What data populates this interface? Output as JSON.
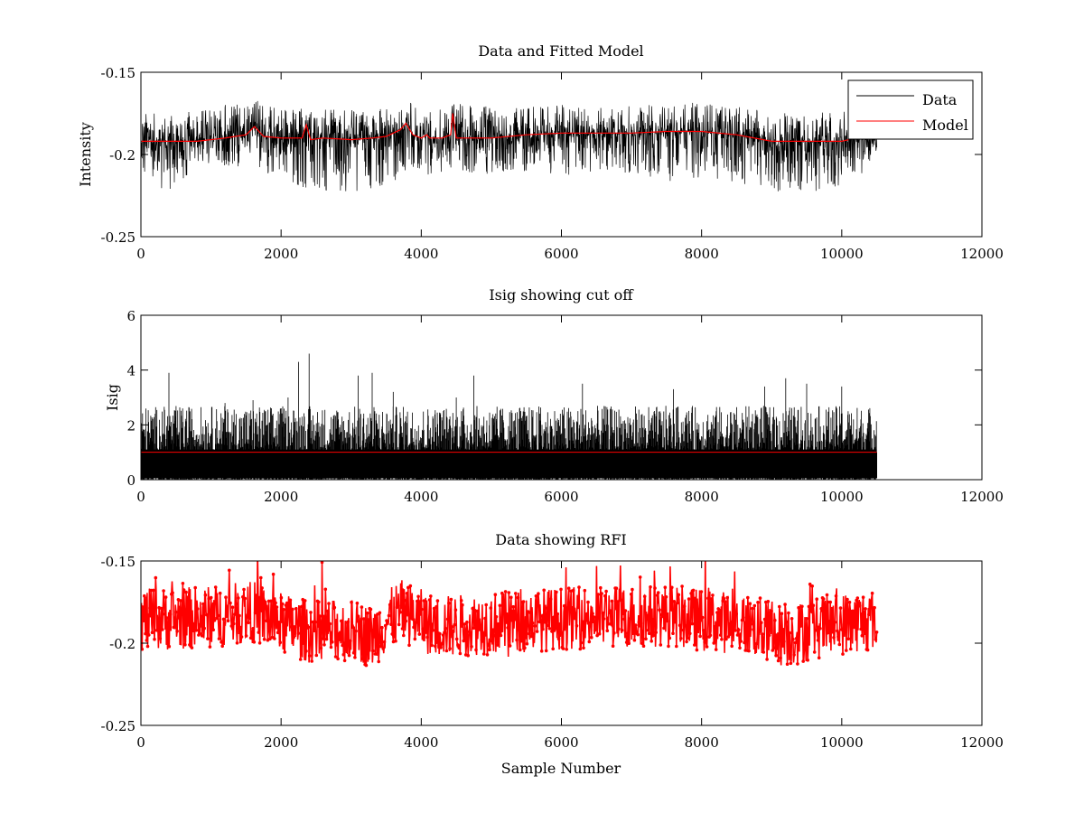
{
  "figure": {
    "background": "#ffffff",
    "x_max_sample": 10500,
    "data_color": "#000000",
    "model_color": "#ff0000"
  },
  "chart_data": [
    {
      "type": "line",
      "title": "Data and Fitted Model",
      "xlabel": "",
      "ylabel": "Intensity",
      "xlim": [
        0,
        12000
      ],
      "ylim": [
        -0.25,
        -0.15
      ],
      "y_reversed": true,
      "xticks": [
        0,
        2000,
        4000,
        6000,
        8000,
        10000,
        12000
      ],
      "xtick_labels": [
        "0",
        "2000",
        "4000",
        "6000",
        "8000",
        "10000",
        "12000"
      ],
      "yticks": [
        -0.15,
        -0.2,
        -0.25
      ],
      "ytick_labels": [
        "-0.15",
        "-0.2",
        "-0.25"
      ],
      "legend": {
        "location": "top-right",
        "entries": [
          "Data",
          "Model"
        ]
      },
      "series": [
        {
          "name": "Data",
          "color": "#000000",
          "description": "noisy intensity around model, approx -0.17 to -0.23",
          "envelope_x": [
            0,
            400,
            800,
            1200,
            1600,
            2000,
            2400,
            2800,
            3200,
            3600,
            3800,
            4000,
            4400,
            4800,
            5200,
            5600,
            6000,
            6400,
            6800,
            7200,
            7600,
            8000,
            8400,
            8800,
            9200,
            9600,
            10000,
            10500
          ],
          "envelope_min": [
            -0.174,
            -0.176,
            -0.173,
            -0.168,
            -0.166,
            -0.17,
            -0.171,
            -0.173,
            -0.172,
            -0.17,
            -0.166,
            -0.175,
            -0.168,
            -0.17,
            -0.172,
            -0.171,
            -0.169,
            -0.172,
            -0.171,
            -0.17,
            -0.169,
            -0.168,
            -0.17,
            -0.171,
            -0.175,
            -0.174,
            -0.173,
            -0.178
          ],
          "envelope_max": [
            -0.212,
            -0.226,
            -0.206,
            -0.207,
            -0.21,
            -0.213,
            -0.226,
            -0.222,
            -0.224,
            -0.218,
            -0.21,
            -0.214,
            -0.21,
            -0.213,
            -0.211,
            -0.212,
            -0.216,
            -0.213,
            -0.21,
            -0.214,
            -0.218,
            -0.214,
            -0.216,
            -0.22,
            -0.225,
            -0.223,
            -0.221,
            -0.205
          ]
        },
        {
          "name": "Model",
          "color": "#ff0000",
          "x": [
            0,
            400,
            800,
            1200,
            1500,
            1620,
            1750,
            2000,
            2300,
            2360,
            2420,
            2600,
            3000,
            3300,
            3500,
            3700,
            3780,
            3880,
            4000,
            4080,
            4120,
            4300,
            4420,
            4450,
            4500,
            4700,
            5000,
            5500,
            6000,
            6500,
            7000,
            7500,
            8000,
            8500,
            9000,
            9500,
            10000,
            10100
          ],
          "y": [
            -0.192,
            -0.192,
            -0.192,
            -0.19,
            -0.188,
            -0.183,
            -0.189,
            -0.19,
            -0.19,
            -0.182,
            -0.191,
            -0.19,
            -0.191,
            -0.19,
            -0.189,
            -0.185,
            -0.181,
            -0.188,
            -0.19,
            -0.188,
            -0.19,
            -0.19,
            -0.188,
            -0.175,
            -0.19,
            -0.19,
            -0.19,
            -0.188,
            -0.187,
            -0.187,
            -0.187,
            -0.186,
            -0.186,
            -0.188,
            -0.192,
            -0.192,
            -0.192,
            -0.191
          ]
        }
      ]
    },
    {
      "type": "line",
      "title": "Isig showing cut off",
      "xlabel": "",
      "ylabel": "Isig",
      "xlim": [
        0,
        12000
      ],
      "ylim": [
        0,
        6
      ],
      "y_reversed": false,
      "xticks": [
        0,
        2000,
        4000,
        6000,
        8000,
        10000,
        12000
      ],
      "xtick_labels": [
        "0",
        "2000",
        "4000",
        "6000",
        "8000",
        "10000",
        "12000"
      ],
      "yticks": [
        0,
        2,
        4,
        6
      ],
      "ytick_labels": [
        "0",
        "2",
        "4",
        "6"
      ],
      "series": [
        {
          "name": "Isig",
          "color": "#000000",
          "description": "spiky non-negative signal, dense band 0-1.6 with spikes up to ~4.6",
          "spikes_x": [
            400,
            1200,
            1600,
            2100,
            2250,
            2400,
            3100,
            3300,
            3600,
            4500,
            4750,
            6300,
            7600,
            8900,
            9200,
            9500,
            10000
          ],
          "spikes_y": [
            3.9,
            2.8,
            2.9,
            3.0,
            4.3,
            4.6,
            3.8,
            3.9,
            3.2,
            3.0,
            3.8,
            3.5,
            3.3,
            3.4,
            3.7,
            3.5,
            3.4
          ]
        },
        {
          "name": "Cut off",
          "color": "#ff0000",
          "x": [
            0,
            10500
          ],
          "y": [
            1.0,
            1.0
          ]
        }
      ]
    },
    {
      "type": "line",
      "title": "Data showing RFI",
      "xlabel": "Sample Number",
      "ylabel": "",
      "xlim": [
        0,
        12000
      ],
      "ylim": [
        -0.25,
        -0.15
      ],
      "y_reversed": true,
      "xticks": [
        0,
        2000,
        4000,
        6000,
        8000,
        10000,
        12000
      ],
      "xtick_labels": [
        "0",
        "2000",
        "4000",
        "6000",
        "8000",
        "10000",
        "12000"
      ],
      "yticks": [
        -0.15,
        -0.2,
        -0.25
      ],
      "ytick_labels": [
        "-0.15",
        "-0.2",
        "-0.25"
      ],
      "series": [
        {
          "name": "Data",
          "color": "#000000",
          "description": "same data as top panel, mostly covered by red RFI markers"
        },
        {
          "name": "RFI",
          "color": "#ff0000",
          "marker": "dot-line",
          "description": "flagged points, approx -0.16 to -0.225"
        }
      ]
    }
  ]
}
